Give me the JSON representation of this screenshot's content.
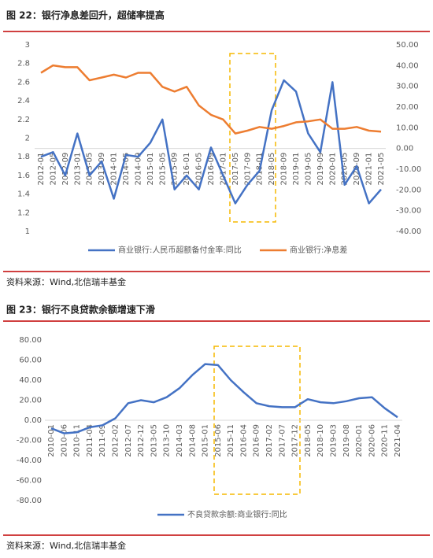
{
  "captions": [
    "图 22：银行净息差回升，超储率提高",
    "图 23：银行不良贷款余额增速下滑"
  ],
  "sources": [
    "资料来源：Wind,北信瑞丰基金",
    "资料来源：Wind,北信瑞丰基金"
  ],
  "chart_data": [
    {
      "type": "line",
      "categories": [
        "2012-01",
        "2012-05",
        "2012-09",
        "2013-01",
        "2013-05",
        "2013-09",
        "2014-01",
        "2014-05",
        "2014-09",
        "2015-01",
        "2015-05",
        "2015-09",
        "2016-01",
        "2016-05",
        "2016-09",
        "2017-01",
        "2017-05",
        "2017-09",
        "2018-01",
        "2018-05",
        "2018-09",
        "2019-01",
        "2019-05",
        "2019-09",
        "2020-01",
        "2020-05",
        "2020-09",
        "2021-01",
        "2021-05"
      ],
      "series": [
        {
          "name": "商业银行:人民币超额备付金率:同比",
          "color": "#4472c4",
          "values": [
            1.8,
            1.85,
            1.6,
            2.05,
            1.6,
            1.75,
            1.35,
            1.82,
            1.8,
            1.95,
            2.2,
            1.45,
            1.6,
            1.45,
            1.9,
            1.6,
            1.3,
            1.5,
            1.65,
            2.3,
            2.62,
            2.5,
            2.05,
            1.85,
            2.6,
            1.5,
            1.7,
            1.3,
            1.45
          ]
        },
        {
          "name": "商业银行:净息差",
          "color": "#ed7d31",
          "values": [
            2.7,
            2.78,
            2.76,
            2.76,
            2.62,
            2.65,
            2.68,
            2.65,
            2.7,
            2.7,
            2.55,
            2.5,
            2.55,
            2.35,
            2.25,
            2.2,
            2.05,
            2.08,
            2.12,
            2.1,
            2.13,
            2.17,
            2.18,
            2.2,
            2.1,
            2.1,
            2.12,
            2.08,
            2.07
          ]
        }
      ],
      "ylim": [
        1,
        3
      ],
      "yticks": [
        1,
        1.2,
        1.4,
        1.6,
        1.8,
        2,
        2.2,
        2.4,
        2.6,
        2.8,
        3
      ],
      "y2lim": [
        -40,
        50
      ],
      "y2ticks": [
        {
          "value": -40,
          "label": "-40.00"
        },
        {
          "value": -30,
          "label": "-30.00"
        },
        {
          "value": -20,
          "label": "-20.00"
        },
        {
          "value": -10,
          "label": "-10.00"
        },
        {
          "value": 0,
          "label": "0.00"
        },
        {
          "value": 10,
          "label": "10.00"
        },
        {
          "value": 20,
          "label": "20.00"
        },
        {
          "value": 30,
          "label": "30.00"
        },
        {
          "value": 40,
          "label": "40.00"
        },
        {
          "value": 50,
          "label": "50.00"
        }
      ],
      "legend": "bottom"
    },
    {
      "type": "line",
      "categories": [
        "2010-01",
        "2010-06",
        "2010-11",
        "2011-04",
        "2011-09",
        "2012-02",
        "2012-07",
        "2012-12",
        "2013-05",
        "2013-10",
        "2014-03",
        "2014-08",
        "2015-01",
        "2015-06",
        "2015-11",
        "2016-04",
        "2016-09",
        "2017-02",
        "2017-07",
        "2017-12",
        "2018-05",
        "2018-10",
        "2019-03",
        "2019-08",
        "2020-01",
        "2020-06",
        "2020-11",
        "2021-04"
      ],
      "series": [
        {
          "name": "不良贷款余额:商业银行:同比",
          "color": "#4472c4",
          "values": [
            -8,
            -13,
            -12,
            -7,
            -5,
            2,
            17,
            20,
            18,
            23,
            32,
            45,
            56,
            55,
            40,
            28,
            17,
            14,
            13,
            13,
            21,
            18,
            17,
            19,
            22,
            23,
            12,
            3
          ]
        }
      ],
      "ylim": [
        -80,
        80
      ],
      "yticks": [
        {
          "value": -80,
          "label": "-80.00"
        },
        {
          "value": -60,
          "label": "-60.00"
        },
        {
          "value": -40,
          "label": "-40.00"
        },
        {
          "value": -20,
          "label": "-20.00"
        },
        {
          "value": 0,
          "label": "0.00"
        },
        {
          "value": 20,
          "label": "20.00"
        },
        {
          "value": 40,
          "label": "40.00"
        },
        {
          "value": 60,
          "label": "60.00"
        },
        {
          "value": 80,
          "label": "80.00"
        }
      ],
      "legend": "bottom"
    }
  ]
}
